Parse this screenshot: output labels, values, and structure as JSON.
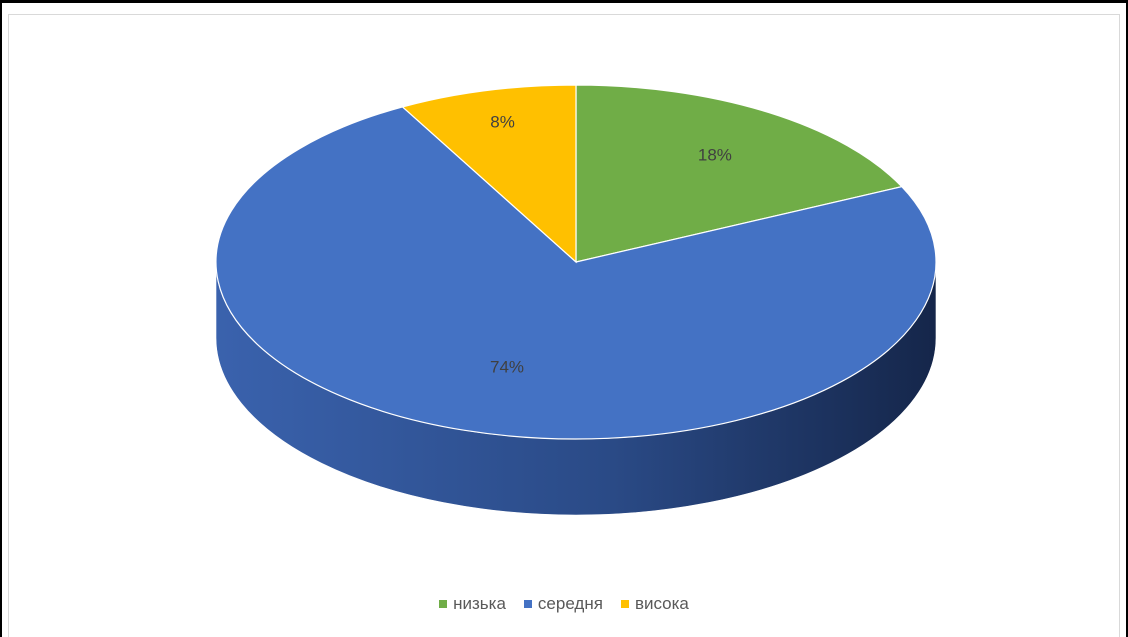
{
  "chart_data": {
    "type": "pie",
    "style": "3d",
    "categories": [
      "низька",
      "середня",
      "висока"
    ],
    "values": [
      18,
      74,
      8
    ],
    "labels": [
      "18%",
      "74%",
      "8%"
    ],
    "colors": [
      "#70ad47",
      "#4472c4",
      "#ffc000"
    ],
    "side_colors": [
      "#4e7a32",
      "#2f4f8a",
      "#b38600"
    ],
    "legend_position": "bottom"
  }
}
